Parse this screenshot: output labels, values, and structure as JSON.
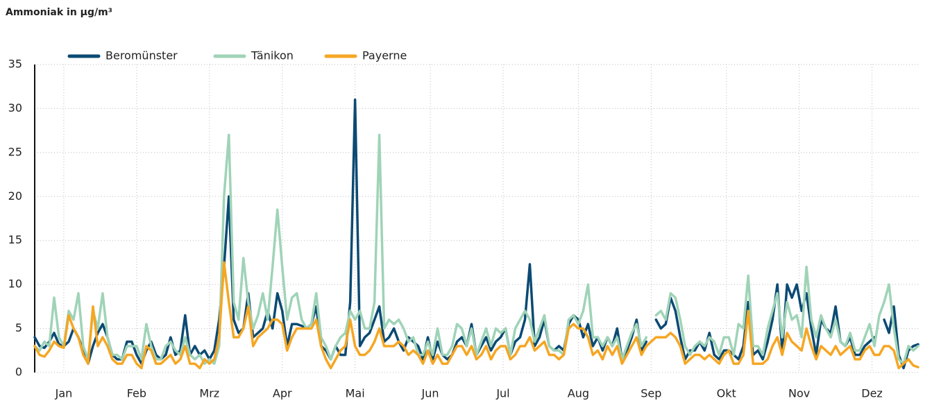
{
  "chart_data": {
    "type": "line",
    "title": "Ammoniak in µg/m³",
    "x": [
      1,
      3,
      5,
      7,
      9,
      11,
      13,
      15,
      17,
      19,
      21,
      23,
      25,
      27,
      29,
      31,
      33,
      35,
      37,
      39,
      41,
      43,
      45,
      47,
      49,
      51,
      53,
      55,
      57,
      59,
      61,
      63,
      65,
      67,
      69,
      71,
      73,
      75,
      77,
      79,
      81,
      83,
      85,
      87,
      89,
      91,
      93,
      95,
      97,
      99,
      101,
      103,
      105,
      107,
      109,
      111,
      113,
      115,
      117,
      119,
      121,
      123,
      125,
      127,
      129,
      131,
      133,
      135,
      137,
      139,
      141,
      143,
      145,
      147,
      149,
      151,
      153,
      155,
      157,
      159,
      161,
      163,
      165,
      167,
      169,
      171,
      173,
      175,
      177,
      179,
      181,
      183,
      185,
      187,
      189,
      191,
      193,
      195,
      197,
      199,
      201,
      203,
      205,
      207,
      209,
      211,
      213,
      215,
      217,
      219,
      221,
      223,
      225,
      227,
      229,
      231,
      233,
      235,
      237,
      239,
      241,
      243,
      245,
      247,
      249,
      251,
      253,
      255,
      257,
      259,
      261,
      263,
      265,
      267,
      269,
      271,
      273,
      275,
      277,
      279,
      281,
      283,
      285,
      287,
      289,
      291,
      293,
      295,
      297,
      299,
      301,
      303,
      305,
      307,
      309,
      311,
      313,
      315,
      317,
      319,
      321,
      323,
      325,
      327,
      329,
      331,
      333,
      335,
      337,
      339,
      341,
      343,
      345,
      347,
      349,
      351,
      353,
      355,
      357,
      359,
      361,
      363,
      365
    ],
    "series": [
      {
        "name": "Beromünster",
        "color": "#0b4a73",
        "values": [
          4,
          3,
          2.8,
          3.5,
          4.5,
          3.2,
          3,
          3.5,
          5,
          4,
          2.5,
          1,
          3,
          4.5,
          5.5,
          4,
          2,
          1.5,
          1.5,
          3.5,
          3.5,
          2,
          1,
          2.5,
          3.5,
          2,
          1.5,
          2,
          4,
          2,
          2.5,
          6.5,
          2,
          3,
          2,
          2.5,
          1.5,
          2.5,
          6,
          12,
          20,
          6,
          4.5,
          5,
          9,
          4,
          4.5,
          5,
          7,
          5,
          9,
          7,
          3,
          5.5,
          5.5,
          5.3,
          5,
          5.5,
          7.5,
          3,
          2.5,
          1.5,
          3,
          2,
          2,
          8,
          31,
          3,
          4,
          4.5,
          6,
          7.5,
          3.5,
          4,
          5,
          3.5,
          2.5,
          4,
          3.5,
          3,
          1.5,
          4,
          1.5,
          3.5,
          2,
          1.5,
          2,
          3.5,
          4,
          3,
          5.5,
          2,
          3,
          4,
          2.5,
          3.5,
          4,
          5,
          2,
          3.5,
          4,
          6,
          12.3,
          3,
          4,
          6,
          3,
          2.5,
          3,
          2.5,
          5.5,
          6.5,
          6,
          4,
          5.5,
          3,
          4,
          2.5,
          4,
          3,
          5,
          1.5,
          2.5,
          4,
          6,
          2.5,
          3.5,
          null,
          6,
          5,
          5.5,
          8.5,
          7,
          4,
          1.5,
          2.5,
          2.5,
          3.5,
          2.5,
          4.5,
          2,
          1.5,
          2.5,
          2.5,
          2,
          1.5,
          3,
          8,
          2,
          2.5,
          1.5,
          3.5,
          6,
          10,
          2.5,
          10,
          8.5,
          10,
          7,
          9,
          5,
          2,
          6,
          5,
          4.5,
          7.5,
          3.5,
          3,
          4,
          2,
          2,
          3,
          3.5,
          4,
          null,
          6,
          4.5,
          7.5,
          2,
          0.5,
          2.5,
          3,
          3.2
        ]
      },
      {
        "name": "Tänikon",
        "color": "#9fd3b7",
        "values": [
          3,
          2.5,
          3.5,
          3,
          8.5,
          4,
          3,
          7,
          6,
          9,
          3,
          1.5,
          7,
          5,
          9,
          4,
          2,
          2,
          1.5,
          3,
          3,
          3,
          1.5,
          5.5,
          3,
          1.5,
          1.5,
          3,
          3.5,
          2.5,
          2,
          4,
          2,
          1.5,
          2,
          1,
          1.5,
          1,
          3,
          20,
          27,
          8,
          6,
          13,
          8,
          5,
          6.5,
          9,
          6,
          12,
          18.5,
          12,
          6,
          8.5,
          9,
          6,
          5,
          5.5,
          9,
          4,
          3,
          1.5,
          3,
          4,
          4.5,
          7,
          6,
          7,
          5,
          5,
          8,
          27,
          5,
          6,
          5.5,
          6,
          5,
          3.5,
          4,
          2,
          2,
          3.5,
          2,
          5,
          2,
          2,
          3,
          5.5,
          5,
          3,
          5,
          2,
          3.5,
          5,
          3,
          5,
          4.5,
          5,
          2,
          5,
          6,
          7,
          6,
          3.5,
          5,
          6.5,
          3,
          2.5,
          2.5,
          2,
          6,
          6.5,
          5.5,
          7,
          10,
          4,
          4,
          3,
          4,
          3,
          4,
          1.5,
          3,
          4.5,
          5.5,
          3,
          4,
          null,
          6.5,
          7,
          6,
          9,
          8.5,
          6,
          3,
          2,
          3,
          3.5,
          3,
          4,
          3.5,
          2,
          4,
          4,
          2,
          5.5,
          5,
          11,
          3,
          3,
          2,
          5,
          7,
          9,
          4,
          8,
          6,
          6.5,
          4,
          12,
          6,
          4,
          6.5,
          5,
          4,
          6,
          3.5,
          3,
          4.5,
          2.5,
          2.5,
          4,
          5.5,
          3,
          6.5,
          8,
          10,
          5,
          1.5,
          1,
          3,
          2.5,
          3
        ]
      },
      {
        "name": "Payerne",
        "color": "#f5a623",
        "values": [
          3,
          2,
          1.8,
          2.5,
          3.5,
          3,
          2.8,
          6.5,
          5,
          4,
          2,
          1,
          7.5,
          3,
          4,
          3,
          1.5,
          1,
          1,
          2,
          2,
          1,
          0.5,
          3,
          2.5,
          1,
          1,
          1.5,
          2,
          1,
          1.5,
          3,
          1,
          1,
          0.5,
          1.5,
          1,
          1.5,
          4,
          12.5,
          8,
          4,
          4,
          5,
          7.5,
          3,
          4,
          4.5,
          5,
          6,
          6,
          5.5,
          2.5,
          4,
          5,
          5,
          5,
          5,
          6,
          3,
          1.5,
          0.5,
          1.5,
          2.5,
          3,
          6,
          3,
          2,
          2,
          2.5,
          3.5,
          5,
          3,
          3,
          3,
          3.5,
          3,
          2,
          2.5,
          2,
          1,
          2.5,
          1,
          2,
          1,
          1,
          2,
          3,
          3,
          2,
          3,
          1.5,
          2,
          3,
          1.5,
          2.5,
          3,
          3,
          1.5,
          2,
          3,
          3,
          4,
          2.5,
          3,
          3.5,
          2,
          2,
          1.5,
          2,
          5,
          5.5,
          5,
          5,
          4,
          2,
          2.5,
          1.5,
          3,
          2,
          3,
          1,
          2,
          3,
          4,
          2,
          3,
          3.5,
          4,
          4,
          4,
          4.5,
          4,
          3,
          1,
          1.5,
          2,
          2,
          1.5,
          2,
          1.5,
          1,
          2,
          2.5,
          1,
          1,
          2,
          7,
          1,
          1,
          1,
          1.5,
          3,
          4,
          2,
          4.5,
          3.5,
          3,
          2.5,
          5,
          3,
          1.5,
          3,
          2.5,
          2,
          3,
          2,
          2.5,
          3,
          1.5,
          1.5,
          2.5,
          3,
          2,
          2,
          3,
          3,
          2.5,
          0.5,
          1,
          1.5,
          0.8,
          0.6
        ]
      }
    ],
    "xlim": [
      1,
      365
    ],
    "xticks": [
      {
        "value": 13,
        "label": "Jan"
      },
      {
        "value": 43,
        "label": "Feb"
      },
      {
        "value": 73,
        "label": "Mrz"
      },
      {
        "value": 103,
        "label": "Apr"
      },
      {
        "value": 133,
        "label": "Mai"
      },
      {
        "value": 164,
        "label": "Jun"
      },
      {
        "value": 194,
        "label": "Jul"
      },
      {
        "value": 225,
        "label": "Aug"
      },
      {
        "value": 255,
        "label": "Sep"
      },
      {
        "value": 286,
        "label": "Okt"
      },
      {
        "value": 316,
        "label": "Nov"
      },
      {
        "value": 346,
        "label": "Dez"
      }
    ],
    "ylim": [
      0,
      35
    ],
    "yticks": [
      0,
      5,
      10,
      15,
      20,
      25,
      30,
      35
    ],
    "grid": true
  }
}
